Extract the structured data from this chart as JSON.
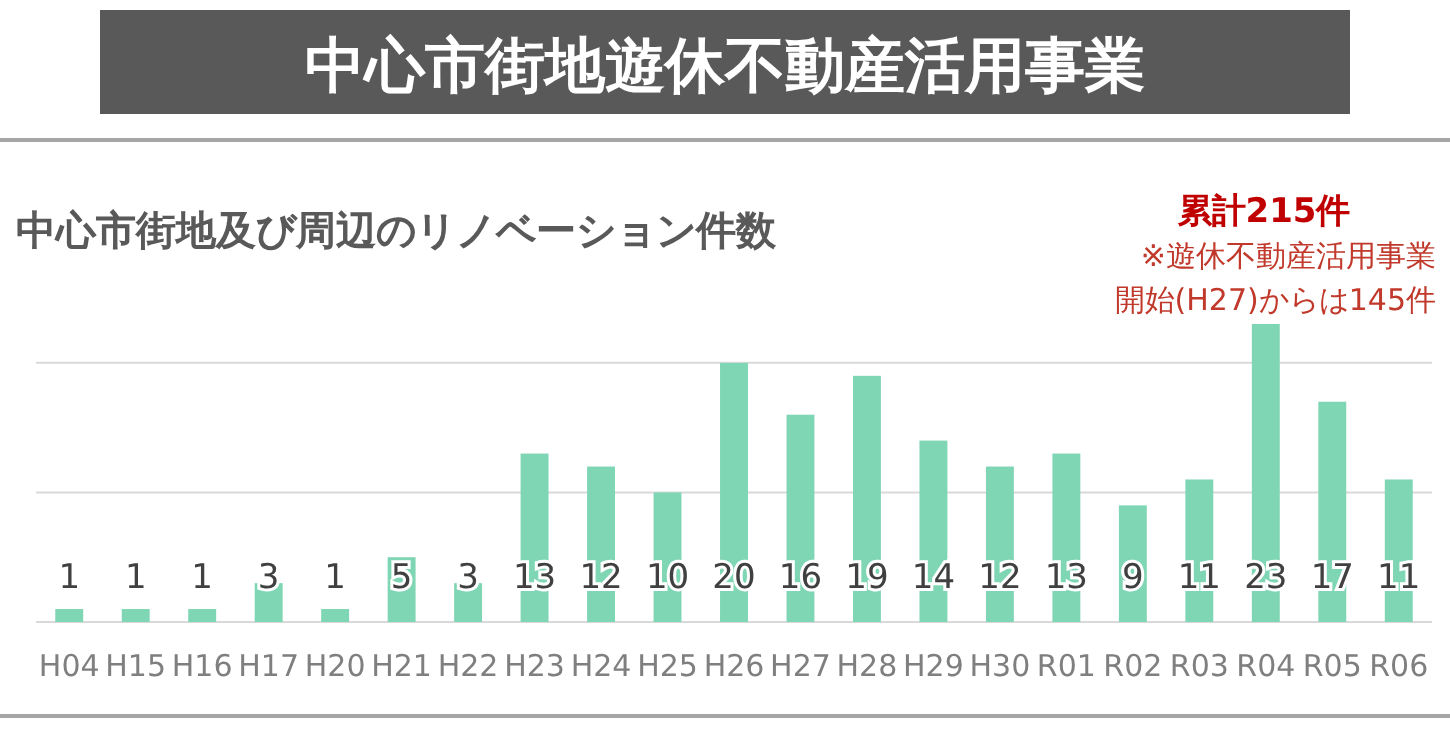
{
  "chart_data": {
    "type": "bar",
    "title": "中心市街地及び周辺のリノベーション件数",
    "subtitle": "中心市街地遊休不動産活用事業",
    "annotations": [
      "累計215件",
      "※遊休不動産活用事業",
      "開始(H27)からは145件"
    ],
    "categories": [
      "H04",
      "H15",
      "H16",
      "H17",
      "H20",
      "H21",
      "H22",
      "H23",
      "H24",
      "H25",
      "H26",
      "H27",
      "H28",
      "H29",
      "H30",
      "R01",
      "R02",
      "R03",
      "R04",
      "R05",
      "R06"
    ],
    "values": [
      1,
      1,
      1,
      3,
      1,
      5,
      3,
      13,
      12,
      10,
      20,
      16,
      19,
      14,
      12,
      13,
      9,
      11,
      23,
      17,
      11
    ],
    "color": "#7fd6b4",
    "ref_lines": [
      {
        "axis": "y",
        "value": 0,
        "color": "#d9d9d9"
      },
      {
        "axis": "y",
        "value": 10,
        "color": "#d9d9d9"
      },
      {
        "axis": "y",
        "value": 20,
        "color": "#d9d9d9"
      }
    ],
    "tick_labels": "x",
    "data_labels": true
  }
}
